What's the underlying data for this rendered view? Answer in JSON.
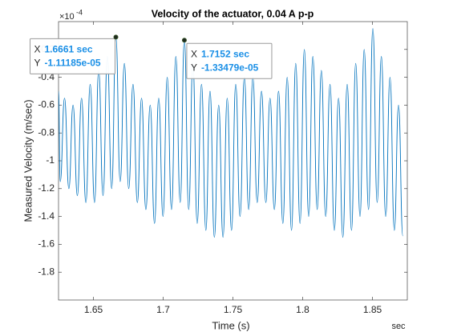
{
  "chart_data": {
    "type": "line",
    "title": "Velocity of the actuator, 0.04 A p-p",
    "xlabel": "Time (s)",
    "ylabel": "Measured Velocity (m/sec)",
    "x_unit": "sec",
    "y_exponent": {
      "base": "×10",
      "power": "-4"
    },
    "xlim": [
      1.625,
      1.875
    ],
    "ylim": [
      -2,
      0
    ],
    "xticks": [
      1.65,
      1.7,
      1.75,
      1.8,
      1.85
    ],
    "yticks": [
      -1.8,
      -1.6,
      -1.4,
      -1.2,
      -1,
      -0.8,
      -0.6,
      -0.4,
      -0.2
    ],
    "grid": false,
    "x": [
      1.625,
      1.6262,
      1.6293,
      1.6324,
      1.6354,
      1.6385,
      1.6415,
      1.6446,
      1.6477,
      1.6508,
      1.6538,
      1.6569,
      1.66,
      1.6631,
      1.6661,
      1.6692,
      1.6722,
      1.6753,
      1.6784,
      1.6815,
      1.6845,
      1.6876,
      1.6907,
      1.6938,
      1.6968,
      1.6999,
      1.7029,
      1.706,
      1.7091,
      1.7122,
      1.7152,
      1.7183,
      1.7213,
      1.7244,
      1.7275,
      1.7306,
      1.7336,
      1.7367,
      1.7398,
      1.7429,
      1.7459,
      1.749,
      1.752,
      1.7551,
      1.7582,
      1.7613,
      1.7643,
      1.7674,
      1.7705,
      1.7736,
      1.7766,
      1.7797,
      1.7827,
      1.7858,
      1.7889,
      1.792,
      1.795,
      1.7981,
      1.8012,
      1.8043,
      1.8073,
      1.8104,
      1.8134,
      1.8165,
      1.8196,
      1.8227,
      1.8257,
      1.8288,
      1.8319,
      1.835,
      1.838,
      1.8411,
      1.8441,
      1.8472,
      1.8503,
      1.8534,
      1.8564,
      1.8595,
      1.8626,
      1.8657,
      1.8687,
      1.8718
    ],
    "series": [
      {
        "name": "velocity",
        "color": "#0072bd",
        "values": [
          -0.5,
          -1.15,
          -0.55,
          -1.2,
          -0.6,
          -1.25,
          -0.55,
          -1.3,
          -0.45,
          -1.3,
          -0.35,
          -1.25,
          -0.25,
          -1.2,
          -0.111185,
          -1.15,
          -0.3,
          -1.2,
          -0.45,
          -1.3,
          -0.55,
          -1.35,
          -0.6,
          -1.45,
          -0.55,
          -1.4,
          -0.4,
          -1.35,
          -0.25,
          -1.3,
          -0.133479,
          -1.35,
          -0.3,
          -1.45,
          -0.45,
          -1.5,
          -0.5,
          -1.55,
          -0.6,
          -1.55,
          -0.55,
          -1.5,
          -0.45,
          -1.4,
          -0.4,
          -1.35,
          -0.4,
          -1.3,
          -0.5,
          -1.3,
          -0.55,
          -1.35,
          -0.5,
          -1.45,
          -0.4,
          -1.5,
          -0.3,
          -1.45,
          -0.2,
          -1.4,
          -0.25,
          -1.35,
          -0.35,
          -1.4,
          -0.45,
          -1.5,
          -0.55,
          -1.55,
          -0.45,
          -1.5,
          -0.3,
          -1.4,
          -0.2,
          -1.35,
          -0.05,
          -1.3,
          -0.25,
          -1.4,
          -0.4,
          -1.5,
          -0.6,
          -1.54
        ]
      }
    ],
    "datatips": [
      {
        "x_name": "X",
        "x": 1.6661,
        "x_label": "1.6661 sec",
        "y_name": "Y",
        "y": -0.111185,
        "y_label": "-1.11185e-05"
      },
      {
        "x_name": "X",
        "x": 1.7152,
        "x_label": "1.7152 sec",
        "y_name": "Y",
        "y": -0.133479,
        "y_label": "-1.33479e-05"
      }
    ]
  }
}
